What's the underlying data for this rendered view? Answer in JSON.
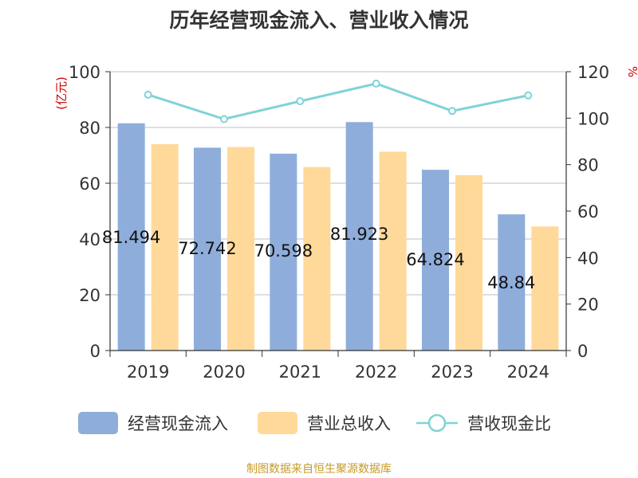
{
  "chart_data": {
    "type": "bar",
    "title": "历年经营现金流入、营业收入情况",
    "categories": [
      "2019",
      "2020",
      "2021",
      "2022",
      "2023",
      "2024"
    ],
    "y_left_label": "(亿元)",
    "y_right_label": "%",
    "y_left_range": [
      0,
      100
    ],
    "y_left_ticks": [
      "0",
      "20",
      "40",
      "60",
      "80",
      "100"
    ],
    "y_right_range": [
      0,
      120
    ],
    "y_right_ticks": [
      "0",
      "20",
      "40",
      "60",
      "80",
      "100",
      "120"
    ],
    "grid": true,
    "legend_position": "bottom",
    "series": [
      {
        "name": "经营现金流入",
        "type": "bar",
        "axis": "left",
        "color": "#8eaddb",
        "values": [
          81.494,
          72.742,
          70.598,
          81.923,
          64.824,
          48.84
        ],
        "labels": [
          "81.494",
          "72.742",
          "70.598",
          "81.923",
          "64.824",
          "48.84"
        ]
      },
      {
        "name": "营业总收入",
        "type": "bar",
        "axis": "left",
        "color": "#ffd99a",
        "values": [
          74.0,
          73.0,
          65.8,
          71.3,
          62.9,
          44.5
        ]
      },
      {
        "name": "营收现金比",
        "type": "line",
        "axis": "right",
        "color": "#7fd3d6",
        "values": [
          110.1,
          99.6,
          107.3,
          114.9,
          103.1,
          109.8
        ]
      }
    ]
  },
  "source_text": "制图数据来自恒生聚源数据库"
}
